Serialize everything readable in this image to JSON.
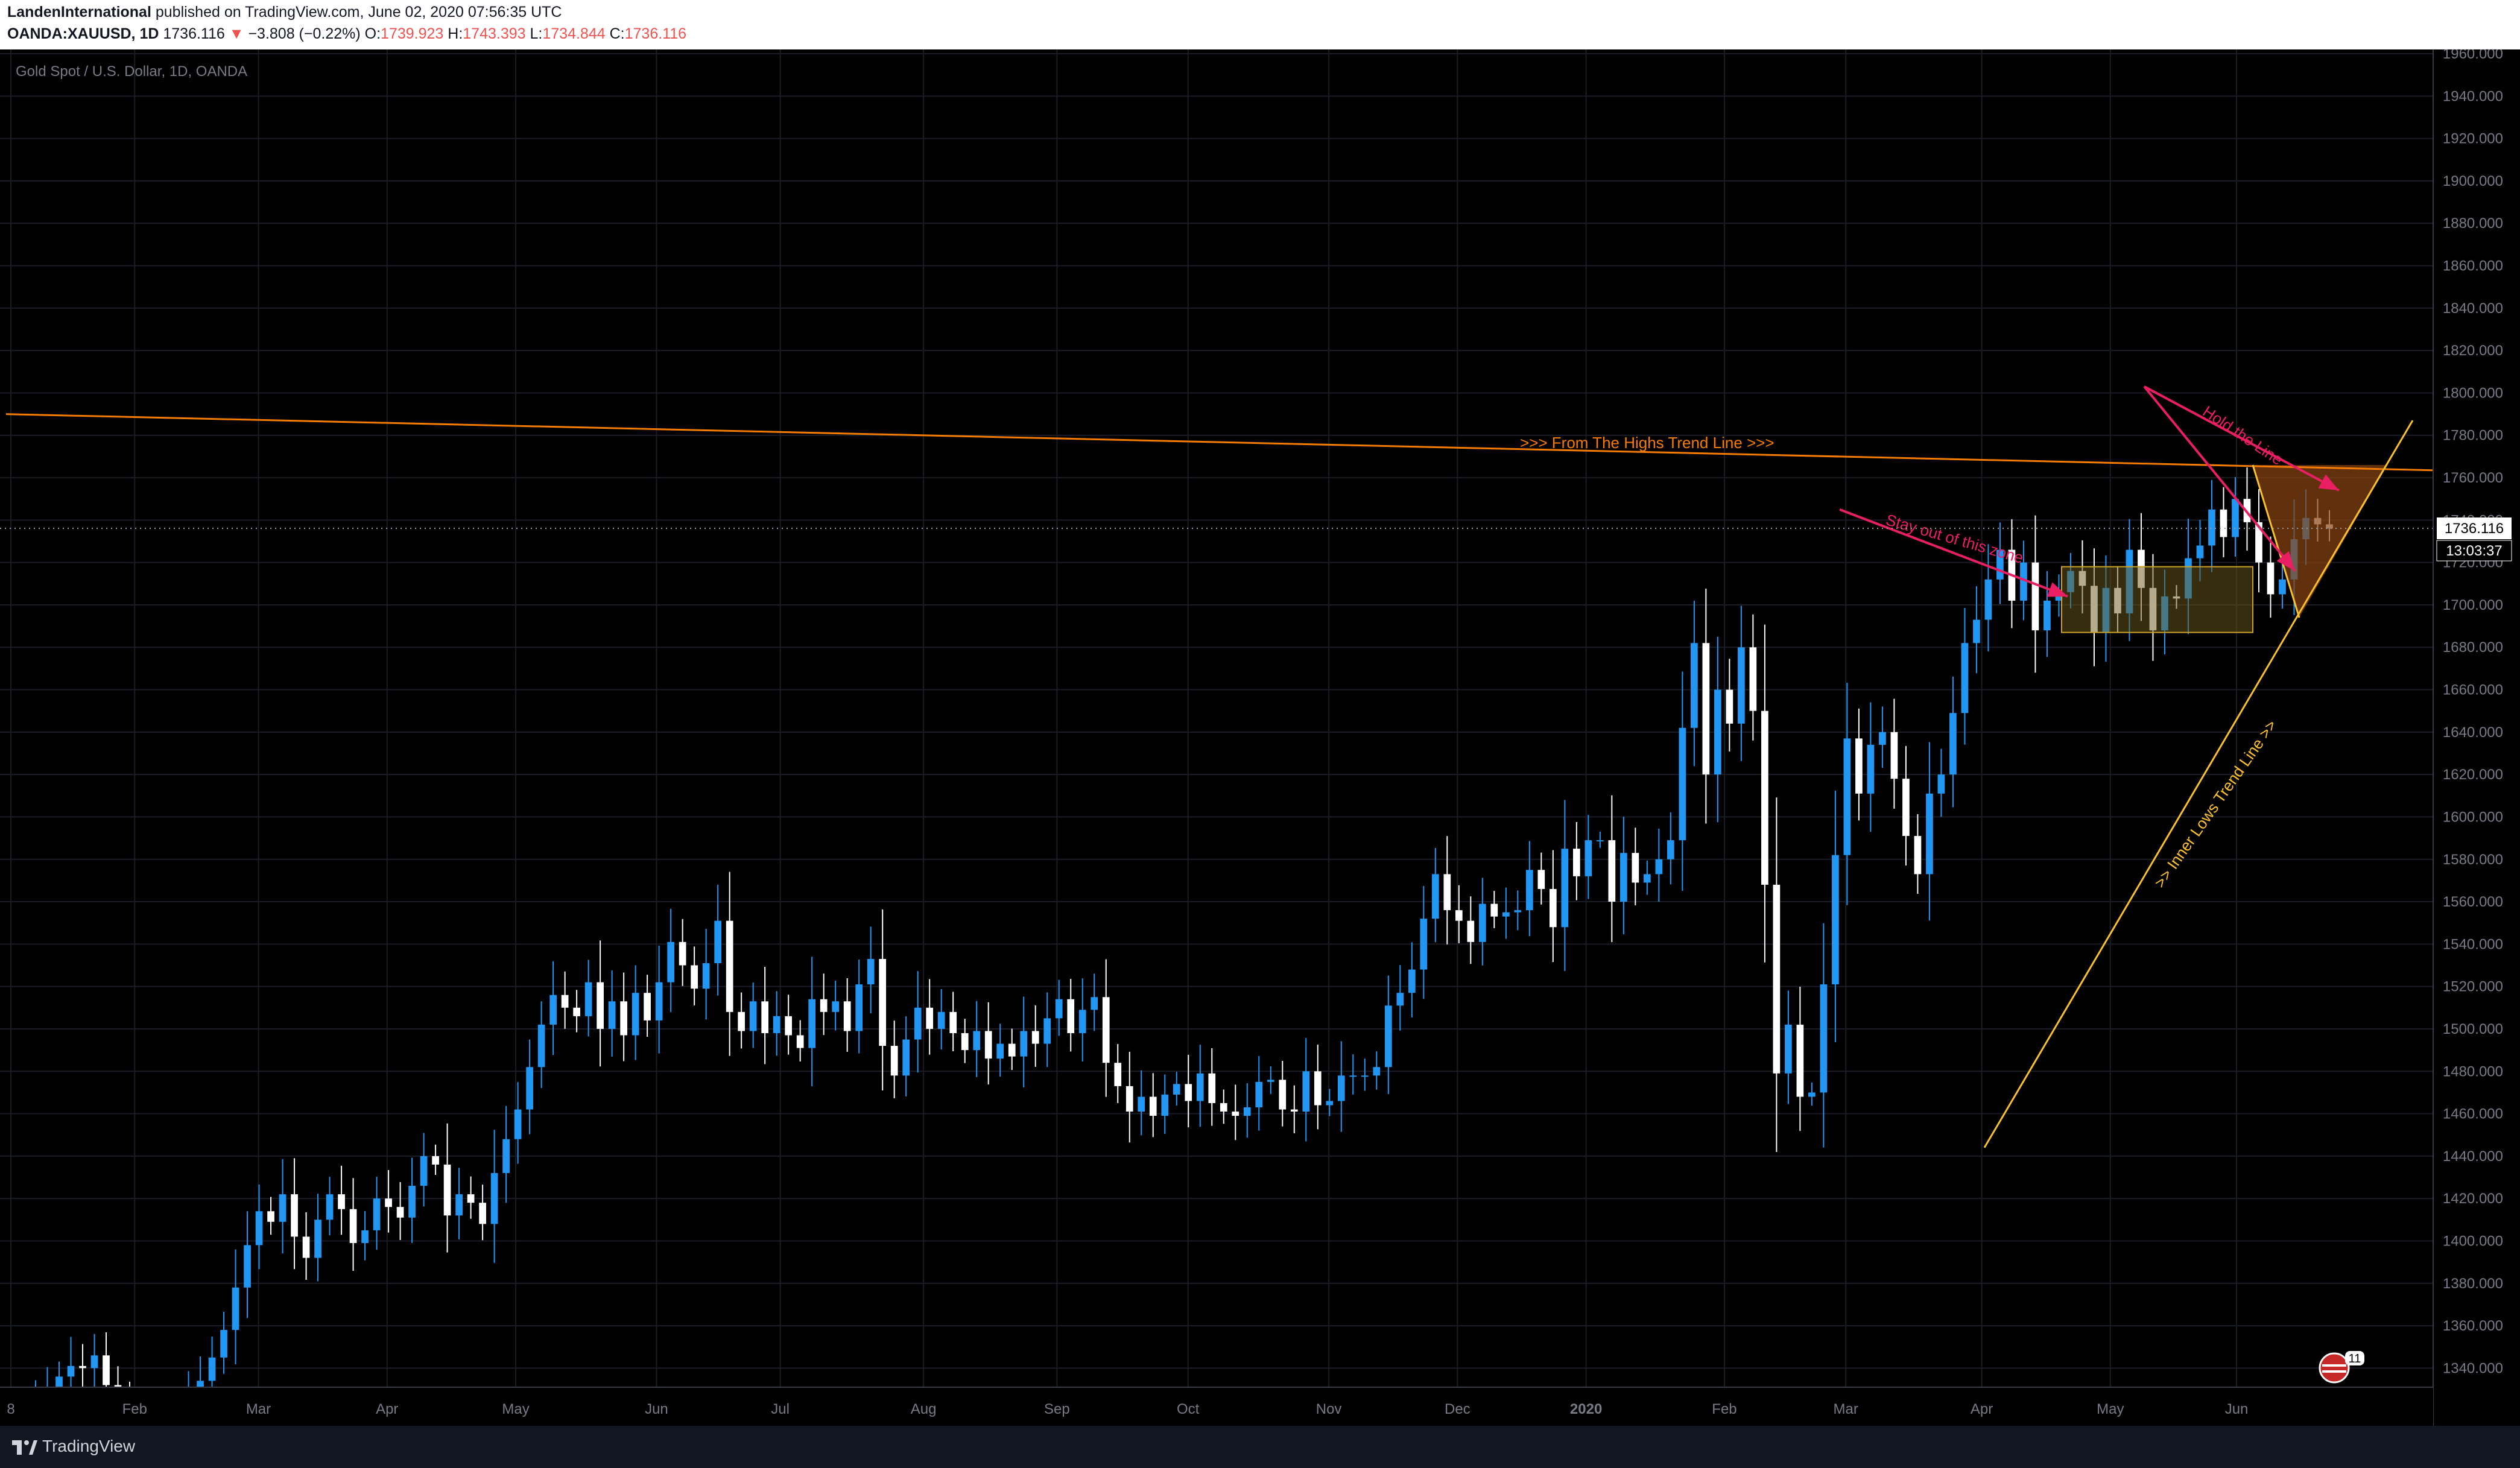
{
  "header": {
    "author": "LandenInternational",
    "published_text": "published on TradingView.com, June 02, 2020 07:56:35 UTC",
    "symbol": "OANDA:XAUUSD, 1D",
    "last_price": "1736.116",
    "change": "−3.808 (−0.22%)",
    "open_label": "O:",
    "open": "1739.923",
    "high_label": "H:",
    "high": "1743.393",
    "low_label": "L:",
    "low": "1734.844",
    "close_label": "C:",
    "close": "1736.116"
  },
  "chart_data": {
    "type": "candlestick",
    "title": "Gold Spot / U.S. Dollar, 1D, OANDA",
    "y_ticks": [
      1340,
      1360,
      1380,
      1400,
      1420,
      1440,
      1460,
      1480,
      1500,
      1520,
      1540,
      1560,
      1580,
      1600,
      1620,
      1640,
      1660,
      1680,
      1700,
      1720,
      1740,
      1760,
      1780,
      1800,
      1820,
      1840,
      1860,
      1880,
      1900,
      1920,
      1940,
      1960
    ],
    "y_tick_labels": [
      "1340.000",
      "1360.000",
      "1380.000",
      "1400.000",
      "1420.000",
      "1440.000",
      "1460.000",
      "1480.000",
      "1500.000",
      "1520.000",
      "1540.000",
      "1560.000",
      "1580.000",
      "1600.000",
      "1620.000",
      "1640.000",
      "1660.000",
      "1680.000",
      "1700.000",
      "1720.000",
      "1740.000",
      "1760.000",
      "1780.000",
      "1800.000",
      "1820.000",
      "1840.000",
      "1860.000",
      "1880.000",
      "1900.000",
      "1920.000",
      "1940.000",
      "1960.000"
    ],
    "ylim": [
      1331,
      1962
    ],
    "x_labels": [
      "8",
      "Feb",
      "Mar",
      "Apr",
      "May",
      "Jun",
      "Jul",
      "Aug",
      "Sep",
      "Oct",
      "Nov",
      "Dec",
      "2020",
      "Feb",
      "Mar",
      "Apr",
      "May",
      "Jun"
    ],
    "last_price_label": "1736.116",
    "countdown_label": "13:03:37",
    "closes": [
      1290,
      1305,
      1320,
      1330,
      1336,
      1341,
      1340,
      1346,
      1332,
      1318,
      1305,
      1295,
      1290,
      1300,
      1311,
      1324,
      1334,
      1345,
      1358,
      1378,
      1398,
      1414,
      1409,
      1422,
      1402,
      1392,
      1410,
      1422,
      1415,
      1399,
      1405,
      1420,
      1416,
      1411,
      1426,
      1440,
      1436,
      1412,
      1422,
      1418,
      1408,
      1432,
      1448,
      1462,
      1482,
      1502,
      1516,
      1510,
      1506,
      1522,
      1500,
      1513,
      1497,
      1517,
      1504,
      1522,
      1541,
      1530,
      1519,
      1531,
      1551,
      1508,
      1499,
      1513,
      1498,
      1506,
      1497,
      1491,
      1514,
      1508,
      1513,
      1499,
      1521,
      1533,
      1492,
      1478,
      1495,
      1510,
      1500,
      1508,
      1498,
      1490,
      1499,
      1486,
      1493,
      1487,
      1499,
      1493,
      1505,
      1514,
      1498,
      1509,
      1515,
      1484,
      1473,
      1461,
      1468,
      1459,
      1469,
      1474,
      1466,
      1479,
      1465,
      1461,
      1459,
      1463,
      1475,
      1476,
      1462,
      1461,
      1480,
      1464,
      1466,
      1478,
      1478,
      1478,
      1482,
      1511,
      1517,
      1528,
      1552,
      1573,
      1556,
      1551,
      1541,
      1559,
      1553,
      1555,
      1556,
      1575,
      1566,
      1548,
      1585,
      1572,
      1589,
      1589,
      1560,
      1583,
      1569,
      1573,
      1580,
      1589,
      1642,
      1682,
      1620,
      1660,
      1644,
      1680,
      1650,
      1568,
      1479,
      1502,
      1468,
      1470,
      1521,
      1582,
      1637,
      1611,
      1634,
      1640,
      1618,
      1591,
      1573,
      1611,
      1620,
      1649,
      1682,
      1693,
      1712,
      1726,
      1702,
      1720,
      1688,
      1702,
      1706,
      1716,
      1709,
      1687,
      1708,
      1696,
      1726,
      1708,
      1688,
      1704,
      1703,
      1722,
      1728,
      1745,
      1732,
      1750,
      1739,
      1720,
      1705,
      1712,
      1731,
      1741,
      1738,
      1736
    ]
  },
  "annotations": {
    "highs_trend_line": ">>> From The Highs Trend Line >>>",
    "inner_lows_trend_line": ">> Inner Lows Trend Line >>",
    "stay_out": "Stay out of this zone",
    "hold_line": "Hold the Line"
  },
  "badge": {
    "count": "11"
  },
  "footer": {
    "brand": "TradingView"
  },
  "colors": {
    "up": "#2196f3",
    "down": "#ffffff",
    "highs_line": "#f57c00",
    "lows_line": "#fbc02d",
    "arrows": "#e91e63",
    "zone": "#6b5a1c",
    "triangle": "#8a4512"
  }
}
